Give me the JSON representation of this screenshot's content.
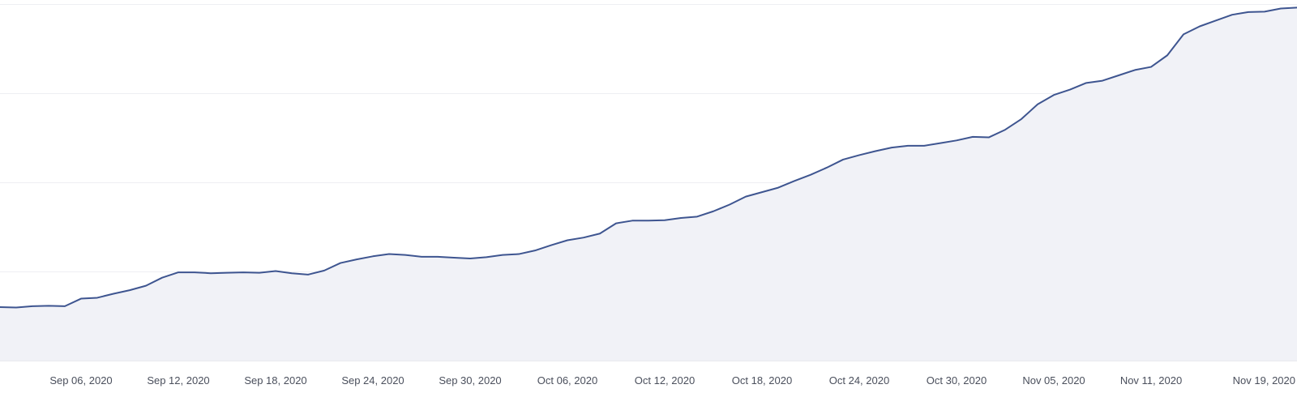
{
  "chart_data": {
    "type": "area",
    "title": "",
    "xlabel": "",
    "ylabel": "",
    "grid": true,
    "y_grid_lines": 4,
    "y_tick_labels_visible": false,
    "ylim": [
      0,
      400
    ],
    "x_range": [
      "2020-09-01",
      "2020-11-20"
    ],
    "x_tick_labels": [
      {
        "date": "2020-09-06",
        "label": "Sep 06, 2020"
      },
      {
        "date": "2020-09-12",
        "label": "Sep 12, 2020"
      },
      {
        "date": "2020-09-18",
        "label": "Sep 18, 2020"
      },
      {
        "date": "2020-09-24",
        "label": "Sep 24, 2020"
      },
      {
        "date": "2020-09-30",
        "label": "Sep 30, 2020"
      },
      {
        "date": "2020-10-06",
        "label": "Oct 06, 2020"
      },
      {
        "date": "2020-10-12",
        "label": "Oct 12, 2020"
      },
      {
        "date": "2020-10-18",
        "label": "Oct 18, 2020"
      },
      {
        "date": "2020-10-24",
        "label": "Oct 24, 2020"
      },
      {
        "date": "2020-10-30",
        "label": "Oct 30, 2020"
      },
      {
        "date": "2020-11-05",
        "label": "Nov 05, 2020"
      },
      {
        "date": "2020-11-11",
        "label": "Nov 11, 2020"
      },
      {
        "date": "2020-11-19",
        "label": "Nov 19, 2020"
      }
    ],
    "colors": {
      "line": "#3e5590",
      "area": "#f1f2f7",
      "grid": "#eeeff3",
      "tick_text": "#4a4f5c"
    },
    "series": [
      {
        "x": [
          "2020-09-01",
          "2020-09-02",
          "2020-09-03",
          "2020-09-04",
          "2020-09-05",
          "2020-09-06",
          "2020-09-07",
          "2020-09-08",
          "2020-09-09",
          "2020-09-10",
          "2020-09-11",
          "2020-09-12",
          "2020-09-13",
          "2020-09-14",
          "2020-09-15",
          "2020-09-16",
          "2020-09-17",
          "2020-09-18",
          "2020-09-19",
          "2020-09-20",
          "2020-09-21",
          "2020-09-22",
          "2020-09-23",
          "2020-09-24",
          "2020-09-25",
          "2020-09-26",
          "2020-09-27",
          "2020-09-28",
          "2020-09-29",
          "2020-09-30",
          "2020-10-01",
          "2020-10-02",
          "2020-10-03",
          "2020-10-04",
          "2020-10-05",
          "2020-10-06",
          "2020-10-07",
          "2020-10-08",
          "2020-10-09",
          "2020-10-10",
          "2020-10-11",
          "2020-10-12",
          "2020-10-13",
          "2020-10-14",
          "2020-10-15",
          "2020-10-16",
          "2020-10-17",
          "2020-10-18",
          "2020-10-19",
          "2020-10-20",
          "2020-10-21",
          "2020-10-22",
          "2020-10-23",
          "2020-10-24",
          "2020-10-25",
          "2020-10-26",
          "2020-10-27",
          "2020-10-28",
          "2020-10-29",
          "2020-10-30",
          "2020-10-31",
          "2020-11-01",
          "2020-11-02",
          "2020-11-03",
          "2020-11-04",
          "2020-11-05",
          "2020-11-06",
          "2020-11-07",
          "2020-11-08",
          "2020-11-09",
          "2020-11-10",
          "2020-11-11",
          "2020-11-12",
          "2020-11-13",
          "2020-11-14",
          "2020-11-15",
          "2020-11-16",
          "2020-11-17",
          "2020-11-18",
          "2020-11-19",
          "2020-11-20"
        ],
        "values": [
          60,
          59.5,
          61,
          61.5,
          61,
          69.5,
          70.5,
          75,
          79,
          84,
          93,
          99,
          99,
          98,
          98.5,
          99,
          98.5,
          100.5,
          98,
          96.5,
          101,
          109.5,
          113.5,
          117,
          119.5,
          118.5,
          116.5,
          116.5,
          115.5,
          114.5,
          116,
          118.5,
          119.5,
          123.5,
          129.5,
          135,
          138,
          142.5,
          154,
          157,
          157,
          157.5,
          160,
          161.5,
          167.5,
          175,
          184,
          189,
          194,
          201.5,
          208.5,
          216.5,
          225.5,
          230.5,
          235,
          239,
          241,
          241,
          244,
          247,
          251,
          250.5,
          259,
          271,
          287.5,
          298,
          304,
          311.5,
          314,
          320,
          326,
          329.5,
          342.5,
          366,
          375,
          381.5,
          388,
          391,
          391.5,
          395,
          396
        ]
      }
    ]
  }
}
